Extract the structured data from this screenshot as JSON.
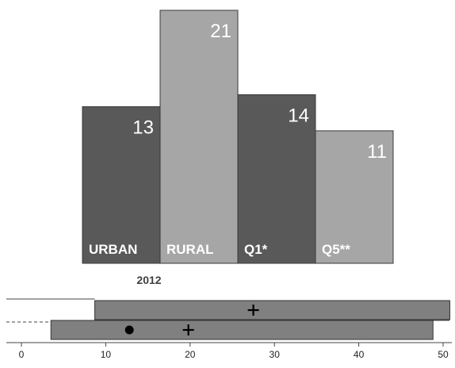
{
  "chart_data": [
    {
      "type": "bar",
      "categories": [
        "URBAN",
        "RURAL",
        "Q1*",
        "Q5**"
      ],
      "values": [
        13,
        21,
        14,
        11
      ],
      "data_labels": [
        "13",
        "21",
        "14",
        "11"
      ],
      "colors": [
        "#595959",
        "#a6a6a6",
        "#595959",
        "#a6a6a6"
      ],
      "ylim": [
        0,
        21
      ],
      "year_label": "2012",
      "grid": false,
      "legend": "none"
    },
    {
      "type": "box",
      "xlim": [
        0,
        50
      ],
      "x_ticks": [
        0,
        10,
        20,
        30,
        40,
        50
      ],
      "x_tick_labels": [
        "0",
        "10",
        "20",
        "30",
        "40",
        "50"
      ],
      "rows": [
        {
          "range": [
            8.7,
            50.8
          ],
          "mean": 27.5,
          "point": null
        },
        {
          "range": [
            3.5,
            48.8
          ],
          "mean": 19.8,
          "point": 12.8
        }
      ],
      "box_color": "#808080"
    }
  ]
}
